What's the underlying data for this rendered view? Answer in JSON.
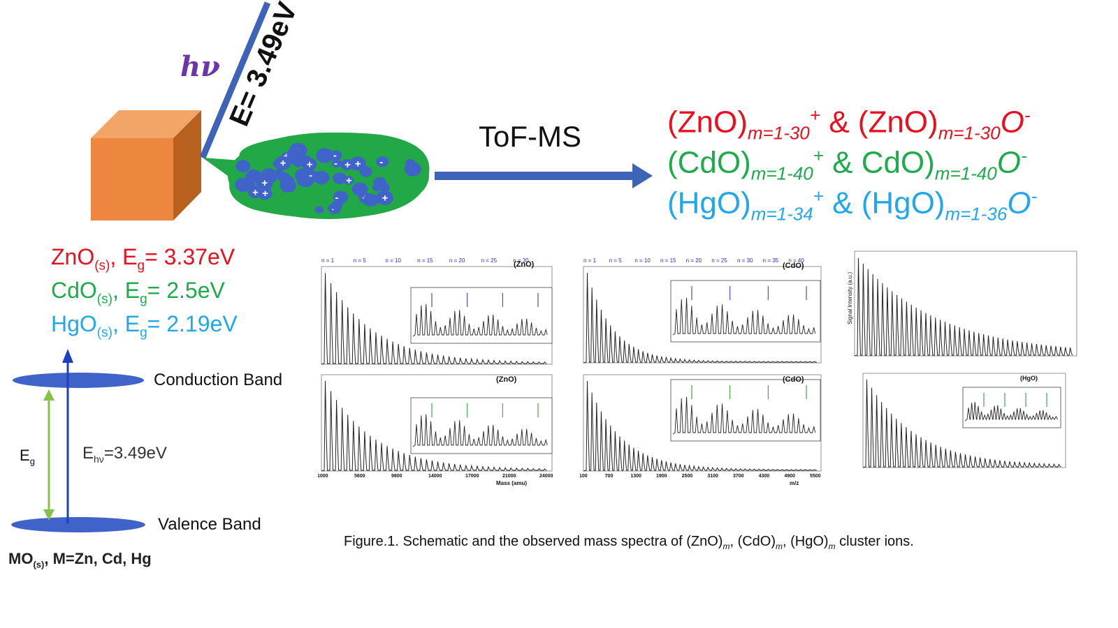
{
  "schematic": {
    "photon_label": "hν",
    "energy_label": "E= 3.49eV",
    "method_label": "ToF-MS"
  },
  "products": [
    {
      "color": "#e8101e",
      "cation": "(ZnO)",
      "cation_range": "m=1-30",
      "cation_charge": "+",
      "amp": "&",
      "anion": "(ZnO)",
      "anion_range": "m=1-30",
      "anion_suffix": "O",
      "anion_charge": "-"
    },
    {
      "color": "#1eab4c",
      "cation": "(CdO)",
      "cation_range": "m=1-40",
      "cation_charge": "+",
      "amp": "&",
      "anion": "CdO)",
      "anion_range": "m=1-40",
      "anion_suffix": "O",
      "anion_charge": "-"
    },
    {
      "color": "#22a7e8",
      "cation": "(HgO)",
      "cation_range": "m=1-34",
      "cation_charge": "+",
      "amp": "&",
      "anion": "(HgO)",
      "anion_range": "m=1-36",
      "anion_suffix": "O",
      "anion_charge": "-"
    }
  ],
  "band_gaps": [
    {
      "color": "#e8101e",
      "formula": "ZnO",
      "phase": "(s)",
      "sep": ",",
      "eg": "E",
      "eg_sub": "g",
      "value": "= 3.37eV"
    },
    {
      "color": "#1eab4c",
      "formula": "CdO",
      "phase": "(s)",
      "sep": ",",
      "eg": "E",
      "eg_sub": "g",
      "value": "= 2.5eV"
    },
    {
      "color": "#22a7e8",
      "formula": "HgO",
      "phase": "(s)",
      "sep": ",",
      "eg": "E",
      "eg_sub": "g",
      "value": "= 2.19eV"
    }
  ],
  "band_diagram": {
    "conduction_label": "Conduction Band",
    "valence_label": "Valence Band",
    "gap_label": "E",
    "gap_sub": "g",
    "photon_energy_main": "E",
    "photon_energy_sub": "hν",
    "photon_energy_value": "=3.49eV",
    "material_main": "MO",
    "material_sub": "(s)",
    "material_rest": ", M=Zn, Cd, Hg"
  },
  "caption": {
    "prefix": "Figure.1. Schematic and the observed mass spectra of (ZnO)",
    "m1": "m",
    "mid1": ", (CdO)",
    "m2": "m",
    "mid2": ", (HgO)",
    "m3": "m",
    "suffix": " cluster ions."
  },
  "spectra": {
    "zno_cation_title": "(ZnO)",
    "zno_anion_title": "(ZnO)",
    "cdo_cation_title": "(CdO)",
    "cdo_anion_title": "(CdO)",
    "hgo_anion_title": "(HgO)",
    "zno_xlabel": "Mass (amu)",
    "cdo_xlabel": "m/z",
    "hgo_ylabel": "Signal Intensity (a.u.)",
    "zno_ticks": [
      "1000",
      "5600",
      "9800",
      "14000",
      "17000",
      "21000",
      "24000"
    ],
    "cdo_ticks": [
      "100",
      "700",
      "1300",
      "1900",
      "2500",
      "3100",
      "3700",
      "4300",
      "4900",
      "5500"
    ],
    "markers_zno_top": [
      "n = 1",
      "n = 5",
      "n = 10",
      "n = 15",
      "n = 20",
      "n = 25",
      "n = 30"
    ],
    "markers_cdo_top": [
      "n = 1",
      "n = 5",
      "n = 10",
      "n = 15",
      "n = 20",
      "n = 25",
      "n = 30",
      "n = 35",
      "n = 40"
    ]
  },
  "colors": {
    "arrow": "#3e64b8",
    "cube_front": "#ed8740",
    "cube_side": "#b8611f",
    "cluster_cloud": "#22a847",
    "particle": "#3f63c8",
    "gap_arrow": "#86c24b",
    "marker_blue": "#2a2acf",
    "marker_green": "#1a9a2a"
  }
}
